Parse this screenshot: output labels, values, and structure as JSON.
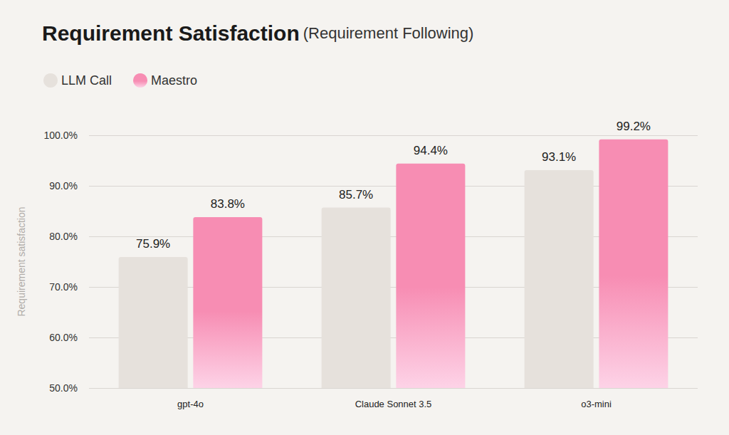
{
  "chart_data": {
    "type": "bar",
    "title": "Requirement Satisfaction",
    "subtitle": "(Requirement Following)",
    "y_label": "Requirement satisfaction",
    "categories": [
      "gpt-4o",
      "Claude Sonnet 3.5",
      "o3-mini"
    ],
    "series": [
      {
        "name": "LLM Call",
        "color": "#e6e1dc",
        "values": [
          75.9,
          85.7,
          93.1
        ],
        "value_labels": [
          "75.9%",
          "85.7%",
          "93.1%"
        ]
      },
      {
        "name": "Maestro",
        "color": "#f78db3",
        "values": [
          83.8,
          94.4,
          99.2
        ],
        "value_labels": [
          "83.8%",
          "94.4%",
          "99.2%"
        ]
      }
    ],
    "ylim": [
      50,
      100
    ],
    "yticks": [
      {
        "value": 50,
        "label": "50.0%"
      },
      {
        "value": 60,
        "label": "60.0%"
      },
      {
        "value": 70,
        "label": "70.0%"
      },
      {
        "value": 80,
        "label": "80.0%"
      },
      {
        "value": 90,
        "label": "90.0%"
      },
      {
        "value": 100,
        "label": "100.0%"
      }
    ],
    "grid": true,
    "legend": "top-left",
    "data_labels": true
  }
}
